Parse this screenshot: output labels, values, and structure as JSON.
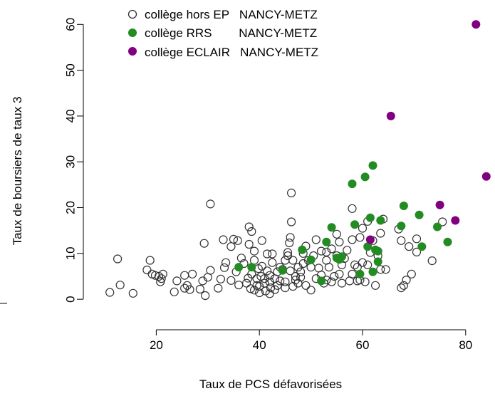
{
  "chart_data": {
    "type": "scatter",
    "title": "",
    "xlabel": "Taux de PCS défavorisées",
    "ylabel": "Taux de boursiers de taux 3",
    "xlim": [
      10,
      85
    ],
    "ylim": [
      -2,
      63
    ],
    "x_ticks": [
      20,
      40,
      60,
      80
    ],
    "y_ticks": [
      0,
      10,
      20,
      30,
      40,
      50,
      60
    ],
    "grid": false,
    "legend_position": "top",
    "series": [
      {
        "name": "collège hors EP   NANCY-METZ",
        "marker": "open-circle",
        "color": "#333333",
        "points": [
          [
            11,
            1.5
          ],
          [
            12.5,
            8.8
          ],
          [
            13,
            3.1
          ],
          [
            15.5,
            1.3
          ],
          [
            18.2,
            6.4
          ],
          [
            18.8,
            8.5
          ],
          [
            19.2,
            5.5
          ],
          [
            19.8,
            5.2
          ],
          [
            20.5,
            5
          ],
          [
            20.8,
            3.8
          ],
          [
            21,
            4.5
          ],
          [
            21.3,
            5.5
          ],
          [
            23.5,
            1.6
          ],
          [
            24,
            4
          ],
          [
            25.5,
            2.4
          ],
          [
            25.5,
            5.2
          ],
          [
            26,
            3
          ],
          [
            26.5,
            2.1
          ],
          [
            27,
            5.5
          ],
          [
            28.5,
            2.2
          ],
          [
            29,
            4
          ],
          [
            29.5,
            0.8
          ],
          [
            29.3,
            12.2
          ],
          [
            30,
            4.8
          ],
          [
            30.5,
            6.3
          ],
          [
            30.5,
            20.8
          ],
          [
            32,
            2.4
          ],
          [
            32.5,
            4.4
          ],
          [
            33,
            13
          ],
          [
            33.2,
            6.9
          ],
          [
            33.5,
            8
          ],
          [
            34.5,
            4.1
          ],
          [
            34.5,
            11.5
          ],
          [
            35,
            13.1
          ],
          [
            35.5,
            6
          ],
          [
            35.8,
            12.8
          ],
          [
            36,
            3.1
          ],
          [
            36.5,
            9
          ],
          [
            37,
            7.8
          ],
          [
            37.5,
            3.5
          ],
          [
            37.8,
            4.6
          ],
          [
            38,
            12
          ],
          [
            38,
            15.8
          ],
          [
            38.3,
            2.3
          ],
          [
            38.5,
            14.8
          ],
          [
            38.5,
            5.5
          ],
          [
            39,
            2
          ],
          [
            39,
            8.5
          ],
          [
            39,
            10.5
          ],
          [
            39.5,
            3
          ],
          [
            39.5,
            4.5
          ],
          [
            39.8,
            6.7
          ],
          [
            40,
            1.4
          ],
          [
            40,
            2.8
          ],
          [
            40.3,
            5
          ],
          [
            40.5,
            7.2
          ],
          [
            40.5,
            12.8
          ],
          [
            41,
            3.5
          ],
          [
            41,
            4.5
          ],
          [
            41.2,
            1.8
          ],
          [
            41.5,
            9.9
          ],
          [
            41.5,
            6.2
          ],
          [
            42,
            1.2
          ],
          [
            42,
            3.8
          ],
          [
            42,
            5.2
          ],
          [
            42.2,
            2.5
          ],
          [
            42.5,
            8
          ],
          [
            42.5,
            9.9
          ],
          [
            43,
            2.1
          ],
          [
            43,
            4.5
          ],
          [
            43.5,
            3
          ],
          [
            43.5,
            6
          ],
          [
            44,
            4
          ],
          [
            44,
            7
          ],
          [
            44.5,
            6.5
          ],
          [
            45,
            2.5
          ],
          [
            45,
            3.8
          ],
          [
            45,
            8.5
          ],
          [
            45.5,
            9.5
          ],
          [
            45.5,
            10.2
          ],
          [
            45.8,
            12.3
          ],
          [
            46,
            6.2
          ],
          [
            46,
            13.5
          ],
          [
            46.2,
            23.2
          ],
          [
            46.2,
            16.9
          ],
          [
            46.5,
            8.5
          ],
          [
            46.5,
            2.8
          ],
          [
            47,
            4.2
          ],
          [
            47,
            5
          ],
          [
            47.5,
            3.5
          ],
          [
            47.5,
            7
          ],
          [
            48,
            4.8
          ],
          [
            48,
            6
          ],
          [
            48.5,
            10
          ],
          [
            48.5,
            7.8
          ],
          [
            49,
            11.6
          ],
          [
            49,
            3
          ],
          [
            49.5,
            8.5
          ],
          [
            50,
            2
          ],
          [
            50,
            7
          ],
          [
            50.5,
            9.5
          ],
          [
            51,
            13
          ],
          [
            51,
            4.5
          ],
          [
            51.5,
            6.8
          ],
          [
            52,
            10.5
          ],
          [
            52,
            5.3
          ],
          [
            52.5,
            3.5
          ],
          [
            53,
            4.2
          ],
          [
            53,
            8.5
          ],
          [
            53,
            10.3
          ],
          [
            53.5,
            7
          ],
          [
            54,
            11
          ],
          [
            54,
            3.8
          ],
          [
            54.5,
            5
          ],
          [
            55,
            9.5
          ],
          [
            55,
            14.2
          ],
          [
            55.5,
            12.5
          ],
          [
            55.5,
            5.5
          ],
          [
            56,
            3.5
          ],
          [
            56,
            7.5
          ],
          [
            56.5,
            8.9
          ],
          [
            57,
            10.7
          ],
          [
            57.5,
            4
          ],
          [
            58,
            5.5
          ],
          [
            58,
            19.8
          ],
          [
            58,
            13
          ],
          [
            58.5,
            7.5
          ],
          [
            59,
            4
          ],
          [
            59,
            7
          ],
          [
            59.5,
            4.2
          ],
          [
            59.5,
            13.5
          ],
          [
            60,
            15.5
          ],
          [
            60,
            8
          ],
          [
            60.5,
            3.8
          ],
          [
            61,
            7.5
          ],
          [
            61,
            17
          ],
          [
            61.5,
            10.2
          ],
          [
            62,
            12.8
          ],
          [
            62.5,
            3
          ],
          [
            63,
            9.5
          ],
          [
            63.5,
            6.5
          ],
          [
            63.5,
            14.4
          ],
          [
            64,
            17.5
          ],
          [
            64.5,
            6.5
          ],
          [
            67,
            15.3
          ],
          [
            67.5,
            12.8
          ],
          [
            67.5,
            2.5
          ],
          [
            68,
            3
          ],
          [
            68.5,
            4.2
          ],
          [
            69,
            11.5
          ],
          [
            69.5,
            5.5
          ],
          [
            70.5,
            13.2
          ],
          [
            70.5,
            10.3
          ],
          [
            73.5,
            8.4
          ],
          [
            75.5,
            16.9
          ]
        ]
      },
      {
        "name": "collège RRS        NANCY-METZ",
        "marker": "filled-circle",
        "color": "#228B22",
        "points": [
          [
            36,
            7
          ],
          [
            38.5,
            7
          ],
          [
            44.5,
            6.3
          ],
          [
            48.3,
            10.8
          ],
          [
            50,
            8.6
          ],
          [
            52,
            4
          ],
          [
            53,
            12.5
          ],
          [
            54,
            15.7
          ],
          [
            55.5,
            8.7
          ],
          [
            55,
            9
          ],
          [
            56,
            9.3
          ],
          [
            58,
            25.2
          ],
          [
            58.5,
            16.3
          ],
          [
            59.5,
            5.5
          ],
          [
            60.5,
            26.7
          ],
          [
            61,
            11.5
          ],
          [
            61.5,
            17.8
          ],
          [
            62,
            29.2
          ],
          [
            62,
            6
          ],
          [
            62.5,
            10.8
          ],
          [
            63,
            8.2
          ],
          [
            63,
            10.5
          ],
          [
            63.5,
            17.2
          ],
          [
            67.5,
            16
          ],
          [
            68,
            20.4
          ],
          [
            71,
            18.4
          ],
          [
            71.5,
            11.5
          ],
          [
            74.5,
            15.8
          ],
          [
            76.5,
            12.5
          ]
        ]
      },
      {
        "name": "collège ECLAIR   NANCY-METZ",
        "marker": "filled-circle",
        "color": "#800080",
        "points": [
          [
            61.5,
            13
          ],
          [
            65.5,
            40
          ],
          [
            75,
            20.6
          ],
          [
            78,
            17.2
          ],
          [
            82,
            60
          ],
          [
            84,
            26.8
          ]
        ]
      }
    ]
  }
}
